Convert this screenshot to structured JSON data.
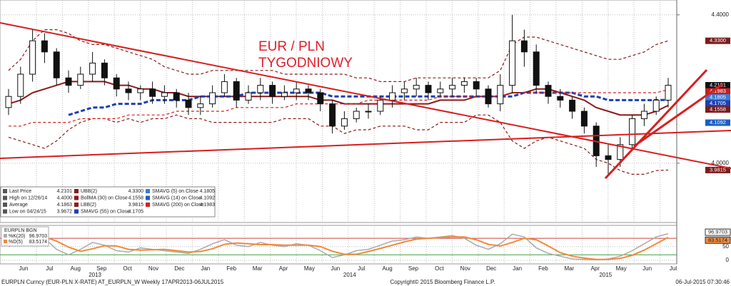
{
  "chart_data": {
    "type": "candlestick",
    "annotation": [
      "EUR / PLN",
      "TYGODNIOWY"
    ],
    "ylim": [
      3.84,
      4.44
    ],
    "yticks": [
      {
        "value": 4.0,
        "label": "4.0000"
      },
      {
        "value": 4.4,
        "label": "4.4000"
      }
    ],
    "grid": true,
    "candles": {
      "open": [
        4.15,
        4.18,
        4.24,
        4.33,
        4.3,
        4.23,
        4.21,
        4.24,
        4.27,
        4.23,
        4.2,
        4.19,
        4.2,
        4.18,
        4.19,
        4.17,
        4.15,
        4.16,
        4.19,
        4.22,
        4.17,
        4.19,
        4.21,
        4.18,
        4.19,
        4.2,
        4.19,
        4.16,
        4.1,
        4.12,
        4.14,
        4.14,
        4.17,
        4.19,
        4.2,
        4.21,
        4.19,
        4.2,
        4.21,
        4.22,
        4.2,
        4.16,
        4.21,
        4.33,
        4.3,
        4.21,
        4.18,
        4.17,
        4.14,
        4.1,
        4.02,
        4.01,
        4.05,
        4.12,
        4.14,
        4.17
      ],
      "high": [
        4.2,
        4.26,
        4.36,
        4.35,
        4.31,
        4.25,
        4.26,
        4.3,
        4.28,
        4.24,
        4.22,
        4.21,
        4.22,
        4.21,
        4.2,
        4.19,
        4.18,
        4.21,
        4.24,
        4.23,
        4.21,
        4.23,
        4.22,
        4.21,
        4.22,
        4.21,
        4.2,
        4.17,
        4.14,
        4.15,
        4.16,
        4.18,
        4.21,
        4.22,
        4.23,
        4.22,
        4.22,
        4.23,
        4.23,
        4.23,
        4.21,
        4.24,
        4.4,
        4.36,
        4.32,
        4.22,
        4.2,
        4.18,
        4.15,
        4.11,
        4.05,
        4.07,
        4.13,
        4.16,
        4.18,
        4.23
      ],
      "low": [
        4.13,
        4.16,
        4.22,
        4.27,
        4.21,
        4.19,
        4.2,
        4.22,
        4.21,
        4.18,
        4.17,
        4.17,
        4.16,
        4.16,
        4.15,
        4.13,
        4.13,
        4.15,
        4.18,
        4.15,
        4.16,
        4.17,
        4.16,
        4.17,
        4.17,
        4.17,
        4.14,
        4.08,
        4.09,
        4.11,
        4.12,
        4.13,
        4.15,
        4.17,
        4.18,
        4.17,
        4.18,
        4.18,
        4.19,
        4.18,
        4.15,
        4.14,
        4.19,
        4.26,
        4.19,
        4.16,
        4.15,
        4.12,
        4.08,
        3.99,
        3.9672,
        3.99,
        4.04,
        4.1,
        4.13,
        4.15
      ],
      "close": [
        4.18,
        4.24,
        4.33,
        4.3,
        4.23,
        4.21,
        4.24,
        4.27,
        4.23,
        4.2,
        4.19,
        4.2,
        4.18,
        4.19,
        4.17,
        4.15,
        4.16,
        4.19,
        4.22,
        4.17,
        4.19,
        4.21,
        4.18,
        4.19,
        4.2,
        4.19,
        4.16,
        4.1,
        4.12,
        4.14,
        4.14,
        4.17,
        4.19,
        4.2,
        4.21,
        4.19,
        4.2,
        4.21,
        4.22,
        4.2,
        4.16,
        4.21,
        4.33,
        4.3,
        4.21,
        4.18,
        4.17,
        4.14,
        4.1,
        4.02,
        4.01,
        4.05,
        4.12,
        4.14,
        4.17,
        4.2101
      ]
    },
    "series": [
      {
        "color": "#8b1a1a",
        "style": "dashed",
        "values": [
          4.25,
          4.28,
          4.33,
          4.36,
          4.36,
          4.35,
          4.33,
          4.32,
          4.32,
          4.31,
          4.3,
          4.29,
          4.28,
          4.26,
          4.25,
          4.24,
          4.24,
          4.25,
          4.25,
          4.25,
          4.25,
          4.25,
          4.25,
          4.24,
          4.24,
          4.24,
          4.24,
          4.24,
          4.24,
          4.23,
          4.23,
          4.22,
          4.22,
          4.22,
          4.23,
          4.23,
          4.23,
          4.23,
          4.23,
          4.23,
          4.23,
          4.25,
          4.32,
          4.34,
          4.34,
          4.33,
          4.32,
          4.31,
          4.3,
          4.29,
          4.28,
          4.28,
          4.29,
          4.3,
          4.32,
          4.33
        ]
      },
      {
        "color": "#8b1a1a",
        "style": "solid",
        "values": [
          4.16,
          4.17,
          4.19,
          4.2,
          4.21,
          4.22,
          4.22,
          4.22,
          4.22,
          4.21,
          4.21,
          4.2,
          4.2,
          4.19,
          4.19,
          4.18,
          4.18,
          4.18,
          4.18,
          4.18,
          4.18,
          4.18,
          4.18,
          4.18,
          4.18,
          4.18,
          4.17,
          4.17,
          4.16,
          4.16,
          4.16,
          4.16,
          4.16,
          4.16,
          4.16,
          4.16,
          4.17,
          4.17,
          4.17,
          4.18,
          4.18,
          4.18,
          4.19,
          4.19,
          4.2,
          4.2,
          4.19,
          4.18,
          4.17,
          4.15,
          4.14,
          4.13,
          4.13,
          4.13,
          4.14,
          4.1558
        ]
      },
      {
        "color": "#8b1a1a",
        "style": "dashed",
        "values": [
          4.07,
          4.06,
          4.05,
          4.04,
          4.06,
          4.09,
          4.11,
          4.12,
          4.12,
          4.11,
          4.12,
          4.11,
          4.12,
          4.12,
          4.13,
          4.12,
          4.12,
          4.11,
          4.11,
          4.11,
          4.11,
          4.11,
          4.11,
          4.12,
          4.12,
          4.12,
          4.1,
          4.1,
          4.08,
          4.09,
          4.09,
          4.1,
          4.1,
          4.1,
          4.09,
          4.09,
          4.11,
          4.11,
          4.11,
          4.13,
          4.13,
          4.11,
          4.06,
          4.04,
          4.06,
          4.07,
          4.06,
          4.05,
          4.04,
          4.01,
          4.0,
          3.98,
          3.97,
          3.97,
          3.98,
          3.9815
        ]
      },
      {
        "color": "#1f3fb0",
        "style": "bold-dashed",
        "values": [
          null,
          null,
          null,
          null,
          null,
          4.13,
          4.14,
          4.15,
          4.15,
          4.16,
          4.16,
          4.16,
          4.17,
          4.17,
          4.17,
          4.17,
          4.18,
          4.18,
          4.18,
          4.18,
          4.19,
          4.19,
          4.19,
          4.19,
          4.19,
          4.19,
          4.19,
          4.18,
          4.18,
          4.18,
          4.18,
          4.18,
          4.18,
          4.18,
          4.18,
          4.18,
          4.18,
          4.18,
          4.18,
          4.18,
          4.18,
          4.18,
          4.18,
          4.19,
          4.19,
          4.19,
          4.19,
          4.19,
          4.18,
          4.18,
          4.17,
          4.17,
          4.17,
          4.17,
          4.17,
          4.1705
        ]
      },
      {
        "color": "#d42020",
        "style": "dashed",
        "values": [
          4.1,
          4.1,
          4.11,
          4.11,
          4.11,
          4.11,
          4.12,
          4.12,
          4.12,
          4.12,
          4.13,
          4.13,
          4.13,
          4.13,
          4.14,
          4.14,
          4.14,
          4.14,
          4.14,
          4.15,
          4.15,
          4.15,
          4.15,
          4.15,
          4.16,
          4.16,
          4.16,
          4.16,
          4.16,
          4.16,
          4.17,
          4.17,
          4.17,
          4.17,
          4.17,
          4.17,
          4.18,
          4.18,
          4.18,
          4.18,
          4.18,
          4.18,
          4.19,
          4.19,
          4.19,
          4.19,
          4.19,
          4.19,
          4.19,
          4.19,
          4.19,
          4.19,
          4.19,
          4.19,
          4.19,
          4.1983
        ]
      }
    ],
    "price_tags": [
      {
        "label": "4.3300",
        "value": 4.33,
        "color": "#7b1c1c"
      },
      {
        "label": "4.2101",
        "value": 4.2101,
        "color": "#111111"
      },
      {
        "label": "4.1983",
        "value": 4.1983,
        "color": "#c42020"
      },
      {
        "label": "4.1805",
        "value": 4.1805,
        "color": "#3a7bd5"
      },
      {
        "label": "4.1705",
        "value": 4.1705,
        "color": "#1f3fb0"
      },
      {
        "label": "4.1558",
        "value": 4.1558,
        "color": "#7b1c1c"
      },
      {
        "label": "4.1092",
        "value": 4.1092,
        "color": "#1a5ec7"
      },
      {
        "label": "3.9815",
        "value": 3.9815,
        "color": "#7b1c1c"
      }
    ],
    "legend": [
      {
        "name": "Last Price",
        "value": "4.2101",
        "color": "#555555"
      },
      {
        "name": "High on 12/26/14",
        "value": "4.4000",
        "color": "#555555"
      },
      {
        "name": "Average",
        "value": "4.1863",
        "color": "#555555"
      },
      {
        "name": "Low on 04/24/15",
        "value": "3.9672",
        "color": "#555555"
      },
      {
        "name": "UBB(2)",
        "value": "4.3300",
        "color": "#8b1a1a"
      },
      {
        "name": "BollMA (30) on Close",
        "value": "4.1558",
        "color": "#8b1a1a"
      },
      {
        "name": "LBB(2)",
        "value": "3.9815",
        "color": "#8b1a1a"
      },
      {
        "name": "SMAVG (55) on Close",
        "value": "4.1705",
        "color": "#1f3fb0"
      },
      {
        "name": "SMAVG (5) on Close",
        "value": "4.1805",
        "color": "#3a7bd5"
      },
      {
        "name": "SMAVG (14) on Close",
        "value": "4.1092",
        "color": "#1a5ec7"
      },
      {
        "name": "SMAVG (200) on Close",
        "value": "4.1983",
        "color": "#d42020"
      }
    ],
    "x_axis": {
      "months": [
        "Jun",
        "Jul",
        "Aug",
        "Sep",
        "Oct",
        "Nov",
        "Dec",
        "Jan",
        "Feb",
        "Mar",
        "Apr",
        "May",
        "Jun",
        "Jul",
        "Aug",
        "Sep",
        "Oct",
        "Nov",
        "Dec",
        "Jan",
        "Feb",
        "Mar",
        "Apr",
        "May",
        "Jun",
        "Jul"
      ],
      "years": [
        "2013",
        "2014",
        "2015"
      ]
    },
    "lower_chart": {
      "type": "stochastic",
      "title": "EURPLN BGN",
      "ylim": [
        -13,
        127
      ],
      "yticks": [
        0,
        50
      ],
      "levels": [
        {
          "value": 80,
          "color": "#d04040"
        },
        {
          "value": 20,
          "color": "#40a040"
        }
      ],
      "series": [
        {
          "name": "%K(20)",
          "legend_value": "96.9703",
          "color": "#aaaaaa",
          "values": [
            60,
            85,
            90,
            80,
            40,
            20,
            40,
            65,
            55,
            35,
            30,
            45,
            40,
            35,
            30,
            25,
            40,
            60,
            75,
            55,
            50,
            65,
            55,
            50,
            60,
            55,
            35,
            10,
            20,
            35,
            40,
            55,
            70,
            75,
            85,
            80,
            85,
            90,
            80,
            55,
            40,
            60,
            95,
            85,
            45,
            25,
            15,
            5,
            3,
            2,
            5,
            15,
            35,
            60,
            85,
            96.9703
          ]
        },
        {
          "name": "%D(5)",
          "legend_value": "83.5174",
          "color": "#f08a3c",
          "values": [
            50,
            70,
            80,
            85,
            70,
            48,
            33,
            42,
            53,
            52,
            40,
            37,
            38,
            40,
            35,
            30,
            32,
            42,
            58,
            63,
            60,
            57,
            57,
            55,
            55,
            55,
            50,
            33,
            22,
            22,
            32,
            43,
            55,
            67,
            77,
            80,
            83,
            85,
            85,
            75,
            58,
            52,
            65,
            80,
            75,
            52,
            28,
            15,
            8,
            3,
            3,
            7,
            18,
            37,
            60,
            83.5174
          ]
        }
      ]
    },
    "footer": {
      "left": "EURPLN Curncy (EUR-PLN X-RATE) AT_EURPLN_W  Weekly 17APR2013-06JUL2015",
      "center": "Copyright© 2015 Bloomberg Finance L.P.",
      "right": "06-Jul-2015 07:30:46"
    }
  }
}
